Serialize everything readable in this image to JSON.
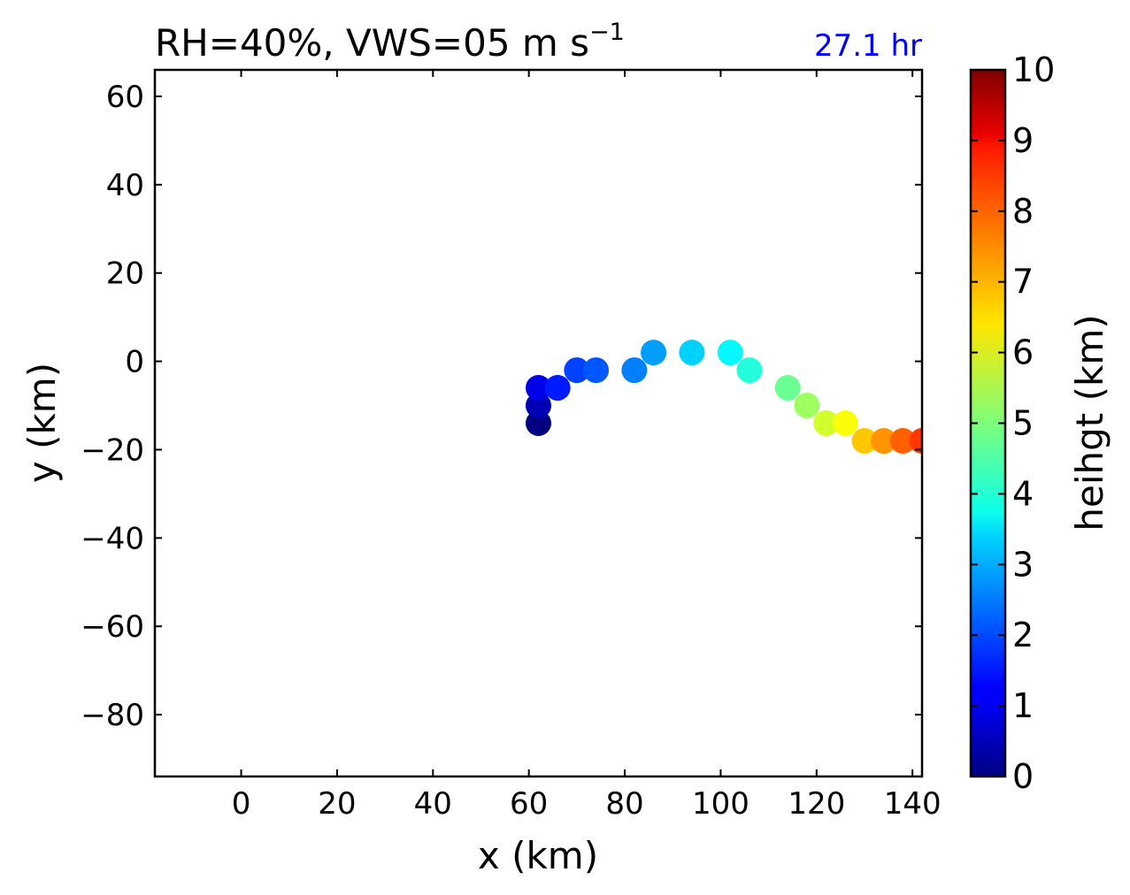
{
  "chart_data": {
    "type": "scatter",
    "title": "RH=40%, VWS=05 m s",
    "title_superscript": "−1",
    "annotation": "27.1 hr",
    "annotation_color": "#0000ff",
    "xlabel": "x (km)",
    "ylabel": "y (km)",
    "xlim": [
      -18,
      142
    ],
    "ylim": [
      -94,
      66
    ],
    "xticks": [
      0,
      20,
      40,
      60,
      80,
      100,
      120,
      140
    ],
    "yticks": [
      60,
      40,
      20,
      0,
      -20,
      -40,
      -60,
      -80
    ],
    "xtick_labels": [
      "0",
      "20",
      "40",
      "60",
      "80",
      "100",
      "120",
      "140"
    ],
    "ytick_labels": [
      "60",
      "40",
      "20",
      "0",
      "−20",
      "−40",
      "−60",
      "−80"
    ],
    "colormap": "jet",
    "colorbar": {
      "label": "heihgt (km)",
      "range": [
        0,
        10
      ],
      "ticks": [
        0,
        1,
        2,
        3,
        4,
        5,
        6,
        7,
        8,
        9,
        10
      ],
      "tick_labels": [
        "0",
        "1",
        "2",
        "3",
        "4",
        "5",
        "6",
        "7",
        "8",
        "9",
        "10"
      ]
    },
    "points": [
      {
        "x": 62,
        "y": -14,
        "height": 0.0
      },
      {
        "x": 62,
        "y": -10,
        "height": 0.5
      },
      {
        "x": 62,
        "y": -6,
        "height": 1.0
      },
      {
        "x": 66,
        "y": -6,
        "height": 1.5
      },
      {
        "x": 70,
        "y": -2,
        "height": 1.9
      },
      {
        "x": 74,
        "y": -2,
        "height": 2.1
      },
      {
        "x": 82,
        "y": -2,
        "height": 2.5
      },
      {
        "x": 86,
        "y": 2,
        "height": 2.8
      },
      {
        "x": 94,
        "y": 2,
        "height": 3.3
      },
      {
        "x": 102,
        "y": 2,
        "height": 3.7
      },
      {
        "x": 106,
        "y": -2,
        "height": 4.1
      },
      {
        "x": 114,
        "y": -6,
        "height": 4.8
      },
      {
        "x": 118,
        "y": -10,
        "height": 5.3
      },
      {
        "x": 122,
        "y": -14,
        "height": 5.8
      },
      {
        "x": 126,
        "y": -14,
        "height": 6.2
      },
      {
        "x": 130,
        "y": -18,
        "height": 6.8
      },
      {
        "x": 134,
        "y": -18,
        "height": 7.3
      },
      {
        "x": 138,
        "y": -18,
        "height": 7.8
      },
      {
        "x": 142,
        "y": -18,
        "height": 8.2
      }
    ]
  }
}
